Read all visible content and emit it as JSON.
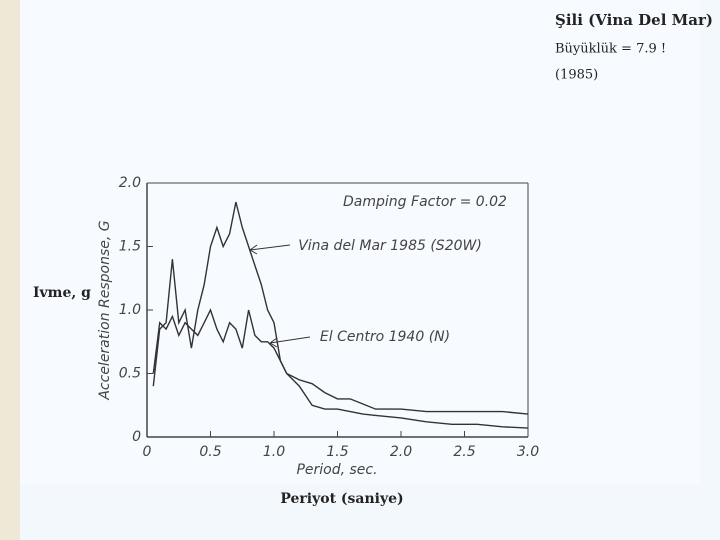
{
  "slide": {
    "heading": "Şili (Vina Del Mar)",
    "magnitude": "Büyüklük = 7.9 !",
    "year": "(1985)",
    "y_caption": "Ivme, g",
    "x_caption": "Periyot (saniye)"
  },
  "chart_data": {
    "type": "line",
    "xlabel": "Period, sec.",
    "ylabel": "Acceleration Response, G",
    "annotations": [
      "Damping Factor = 0.02",
      "Vina del Mar 1985 (S20W)",
      "El Centro 1940 (N)"
    ],
    "x": [
      0.05,
      0.1,
      0.15,
      0.2,
      0.25,
      0.3,
      0.35,
      0.4,
      0.45,
      0.5,
      0.55,
      0.6,
      0.65,
      0.7,
      0.75,
      0.8,
      0.85,
      0.9,
      0.95,
      1.0,
      1.05,
      1.1,
      1.2,
      1.3,
      1.4,
      1.5,
      1.6,
      1.7,
      1.8,
      1.9,
      2.0,
      2.2,
      2.4,
      2.6,
      2.8,
      3.0
    ],
    "series": [
      {
        "name": "Vina del Mar 1985 (S20W)",
        "color": "#333333",
        "values": [
          0.4,
          0.85,
          0.9,
          1.4,
          0.9,
          1.0,
          0.7,
          1.0,
          1.2,
          1.5,
          1.65,
          1.5,
          1.6,
          1.85,
          1.65,
          1.5,
          1.35,
          1.2,
          1.0,
          0.9,
          0.6,
          0.5,
          0.45,
          0.42,
          0.35,
          0.3,
          0.3,
          0.26,
          0.22,
          0.22,
          0.22,
          0.2,
          0.2,
          0.2,
          0.2,
          0.18
        ]
      },
      {
        "name": "El Centro 1940 (N)",
        "color": "#333333",
        "values": [
          0.5,
          0.9,
          0.85,
          0.95,
          0.8,
          0.9,
          0.85,
          0.8,
          0.9,
          1.0,
          0.85,
          0.75,
          0.9,
          0.85,
          0.7,
          1.0,
          0.8,
          0.75,
          0.75,
          0.7,
          0.6,
          0.5,
          0.4,
          0.25,
          0.22,
          0.22,
          0.2,
          0.18,
          0.17,
          0.16,
          0.15,
          0.12,
          0.1,
          0.1,
          0.08,
          0.07
        ]
      }
    ],
    "xlim": [
      0,
      3.0
    ],
    "ylim": [
      0,
      2.0
    ],
    "xticks": [
      0,
      0.5,
      {
        "value": 1.0,
        "label": "1.0"
      },
      1.5,
      {
        "value": 2.0,
        "label": "2.0"
      },
      2.5,
      {
        "value": 3.0,
        "label": "3.0"
      }
    ],
    "yticks": [
      0,
      0.5,
      {
        "value": 1.0,
        "label": "1.0"
      },
      1.5,
      {
        "value": 2.0,
        "label": "2.0"
      }
    ]
  }
}
